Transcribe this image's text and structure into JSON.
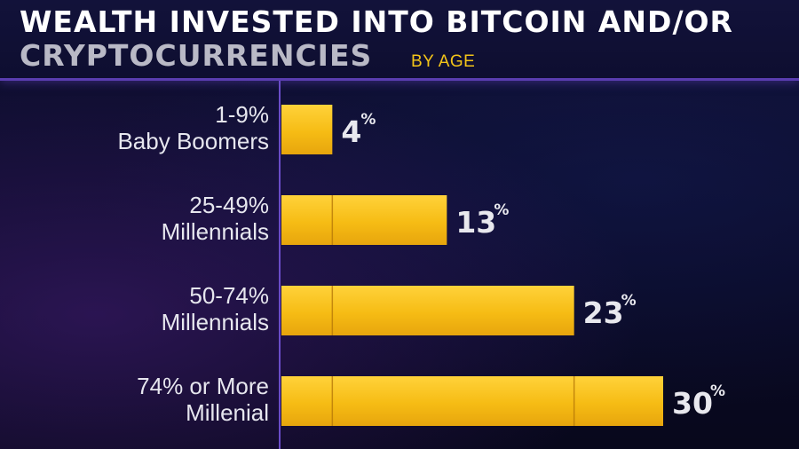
{
  "header": {
    "title_line1": "WEALTH INVESTED INTO BITCOIN AND/OR",
    "title_line2": "CRYPTOCURRENCIES",
    "subtitle": "BY AGE"
  },
  "colors": {
    "bar_fill": "#f6bc14",
    "bar_highlight": "#ffd23a",
    "bar_shadow": "#e39a0c",
    "accent_purple": "#5a3db0",
    "axis_line": "#6a4cc8"
  },
  "chart_data": {
    "type": "bar",
    "orientation": "horizontal",
    "title": "WEALTH INVESTED INTO BITCOIN AND/OR CRYPTOCURRENCIES",
    "subtitle": "BY AGE",
    "categories": [
      {
        "range": "1-9%",
        "group": "Baby Boomers"
      },
      {
        "range": "25-49%",
        "group": "Millennials"
      },
      {
        "range": "50-74%",
        "group": "Millennials"
      },
      {
        "range": "74% or More",
        "group": "Millenial"
      }
    ],
    "values": [
      4,
      13,
      23,
      30
    ],
    "value_labels": [
      "4",
      "13",
      "23",
      "30"
    ],
    "unit": "%",
    "xlim": [
      0,
      30
    ],
    "grid": false,
    "legend": "none"
  }
}
